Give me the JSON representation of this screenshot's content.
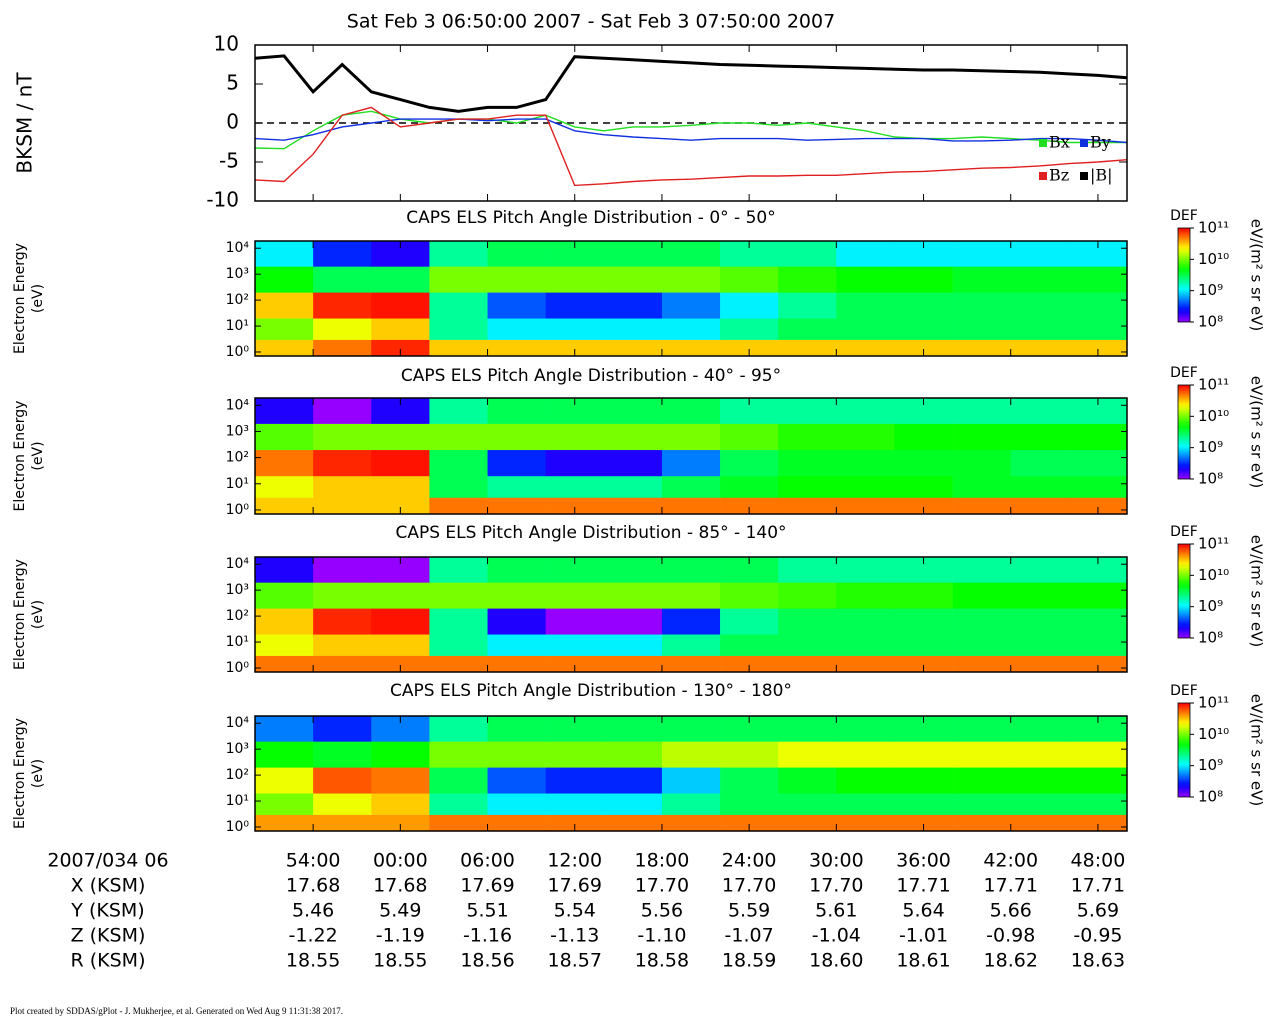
{
  "chart_data": [
    {
      "type": "line",
      "title": "Sat Feb 3 06:50:00 2007 - Sat Feb 3 07:50:00 2007",
      "ylabel": "BKSM / nT",
      "xlim": [
        50,
        110
      ],
      "ylim": [
        -10,
        10
      ],
      "yticks": [
        -10,
        -5,
        0,
        5,
        10
      ],
      "zero_line": true,
      "legend": "lower right",
      "x": [
        50,
        52,
        54,
        56,
        58,
        60,
        62,
        64,
        66,
        68,
        70,
        72,
        74,
        76,
        78,
        80,
        82,
        84,
        86,
        88,
        90,
        92,
        94,
        96,
        98,
        100,
        102,
        104,
        106,
        108,
        110
      ],
      "series": [
        {
          "name": "|B|",
          "color": "#000000",
          "values": [
            8.3,
            8.6,
            4.0,
            7.5,
            4.0,
            3.0,
            2.0,
            1.5,
            2.0,
            2.0,
            3.0,
            8.5,
            8.3,
            8.1,
            7.9,
            7.7,
            7.5,
            7.4,
            7.3,
            7.2,
            7.1,
            7.0,
            6.9,
            6.8,
            6.8,
            6.7,
            6.6,
            6.5,
            6.3,
            6.1,
            5.8
          ]
        },
        {
          "name": "Bx",
          "color": "#22dd22",
          "values": [
            -3.2,
            -3.3,
            -1.0,
            1.0,
            1.5,
            0.5,
            0.0,
            0.5,
            0.5,
            0.0,
            1.0,
            -0.5,
            -1.0,
            -0.5,
            -0.5,
            -0.3,
            0.0,
            0.0,
            -0.3,
            0.0,
            -0.5,
            -1.0,
            -1.8,
            -2.0,
            -2.0,
            -1.8,
            -2.0,
            -2.2,
            -2.5,
            -2.5,
            -2.5
          ]
        },
        {
          "name": "By",
          "color": "#1030e0",
          "values": [
            -2.0,
            -2.2,
            -1.5,
            -0.5,
            0.0,
            0.5,
            0.5,
            0.5,
            0.3,
            0.5,
            0.5,
            -1.0,
            -1.5,
            -1.8,
            -2.0,
            -2.2,
            -2.0,
            -2.0,
            -2.0,
            -2.2,
            -2.1,
            -2.0,
            -2.0,
            -2.0,
            -2.3,
            -2.3,
            -2.2,
            -2.0,
            -2.0,
            -2.2,
            -2.5
          ]
        },
        {
          "name": "Bz",
          "color": "#e02020",
          "values": [
            -7.3,
            -7.5,
            -4.0,
            1.0,
            2.0,
            -0.5,
            0.0,
            0.5,
            0.5,
            1.0,
            1.0,
            -8.0,
            -7.8,
            -7.5,
            -7.3,
            -7.2,
            -7.0,
            -6.8,
            -6.8,
            -6.7,
            -6.7,
            -6.5,
            -6.3,
            -6.2,
            -6.0,
            -5.8,
            -5.7,
            -5.5,
            -5.2,
            -5.0,
            -4.7
          ]
        }
      ]
    },
    {
      "type": "heatmap",
      "title": "CAPS ELS Pitch Angle Distribution - 0° - 50°",
      "ylabel": [
        "Electron Energy",
        "(eV)"
      ],
      "log_y": true,
      "xlim": [
        50,
        110
      ],
      "ylim": [
        0.7,
        19000
      ],
      "yticks": [
        {
          "value": 1,
          "label": "10⁰"
        },
        {
          "value": 10,
          "label": "10¹"
        },
        {
          "value": 100,
          "label": "10²"
        },
        {
          "value": 1000,
          "label": "10³"
        },
        {
          "value": 10000,
          "label": "10⁴"
        }
      ],
      "x_bins": [
        50,
        54,
        58,
        62,
        66,
        70,
        74,
        78,
        82,
        86,
        90,
        94,
        98,
        102,
        106,
        110
      ],
      "y_bins": [
        0.7,
        3,
        20,
        200,
        2000,
        19000
      ],
      "z": [
        [
          30000000000.0,
          50000000000.0,
          80000000000.0,
          30000000000.0,
          30000000000.0,
          30000000000.0,
          30000000000.0,
          30000000000.0,
          30000000000.0,
          30000000000.0,
          30000000000.0,
          30000000000.0,
          30000000000.0,
          30000000000.0,
          30000000000.0
        ],
        [
          10000000000.0,
          20000000000.0,
          30000000000.0,
          2000000000.0,
          1000000000.0,
          1000000000.0,
          1000000000.0,
          1000000000.0,
          2000000000.0,
          3000000000.0,
          3000000000.0,
          3000000000.0,
          3000000000.0,
          3000000000.0,
          3000000000.0
        ],
        [
          30000000000.0,
          80000000000.0,
          90000000000.0,
          2000000000.0,
          400000000.0,
          300000000.0,
          300000000.0,
          500000000.0,
          1000000000.0,
          2000000000.0,
          3000000000.0,
          3000000000.0,
          3000000000.0,
          3000000000.0,
          3000000000.0
        ],
        [
          5000000000.0,
          3000000000.0,
          3000000000.0,
          10000000000.0,
          10000000000.0,
          10000000000.0,
          10000000000.0,
          10000000000.0,
          8000000000.0,
          6000000000.0,
          5000000000.0,
          5000000000.0,
          4000000000.0,
          4000000000.0,
          4000000000.0
        ],
        [
          1000000000.0,
          300000000.0,
          200000000.0,
          2000000000.0,
          3000000000.0,
          3000000000.0,
          3000000000.0,
          3000000000.0,
          2000000000.0,
          2000000000.0,
          1000000000.0,
          1000000000.0,
          1000000000.0,
          1000000000.0,
          1000000000.0
        ]
      ],
      "clim": [
        100000000.0,
        100000000000.0
      ],
      "clabel": "DEF",
      "cunit": "eV/(m² s sr eV)",
      "cticks": [
        {
          "value": 100000000.0,
          "label": "10⁸"
        },
        {
          "value": 1000000000.0,
          "label": "10⁹"
        },
        {
          "value": 10000000000.0,
          "label": "10¹⁰"
        },
        {
          "value": 100000000000.0,
          "label": "10¹¹"
        }
      ]
    },
    {
      "type": "heatmap",
      "title": "CAPS ELS Pitch Angle Distribution - 40° - 95°",
      "ylabel": [
        "Electron Energy",
        "(eV)"
      ],
      "log_y": true,
      "xlim": [
        50,
        110
      ],
      "ylim": [
        0.7,
        19000
      ],
      "yticks": [
        {
          "value": 1,
          "label": "10⁰"
        },
        {
          "value": 10,
          "label": "10¹"
        },
        {
          "value": 100,
          "label": "10²"
        },
        {
          "value": 1000,
          "label": "10³"
        },
        {
          "value": 10000,
          "label": "10⁴"
        }
      ],
      "x_bins": [
        50,
        54,
        58,
        62,
        66,
        70,
        74,
        78,
        82,
        86,
        90,
        94,
        98,
        102,
        106,
        110
      ],
      "y_bins": [
        0.7,
        3,
        20,
        200,
        2000,
        19000
      ],
      "z": [
        [
          30000000000.0,
          30000000000.0,
          30000000000.0,
          50000000000.0,
          50000000000.0,
          50000000000.0,
          50000000000.0,
          50000000000.0,
          50000000000.0,
          50000000000.0,
          50000000000.0,
          50000000000.0,
          50000000000.0,
          50000000000.0,
          50000000000.0
        ],
        [
          20000000000.0,
          30000000000.0,
          30000000000.0,
          3000000000.0,
          2000000000.0,
          2000000000.0,
          2000000000.0,
          3000000000.0,
          4000000000.0,
          5000000000.0,
          5000000000.0,
          5000000000.0,
          4000000000.0,
          4000000000.0,
          4000000000.0
        ],
        [
          50000000000.0,
          80000000000.0,
          90000000000.0,
          3000000000.0,
          300000000.0,
          200000000.0,
          200000000.0,
          500000000.0,
          3000000000.0,
          4000000000.0,
          4000000000.0,
          4000000000.0,
          4000000000.0,
          3000000000.0,
          3000000000.0
        ],
        [
          8000000000.0,
          10000000000.0,
          10000000000.0,
          10000000000.0,
          10000000000.0,
          10000000000.0,
          10000000000.0,
          10000000000.0,
          8000000000.0,
          6000000000.0,
          6000000000.0,
          5000000000.0,
          5000000000.0,
          5000000000.0,
          5000000000.0
        ],
        [
          200000000.0,
          100000000.0,
          200000000.0,
          2000000000.0,
          3000000000.0,
          3000000000.0,
          3000000000.0,
          3000000000.0,
          2000000000.0,
          2000000000.0,
          2000000000.0,
          2000000000.0,
          2000000000.0,
          2000000000.0,
          2000000000.0
        ]
      ],
      "clim": [
        100000000.0,
        100000000000.0
      ],
      "clabel": "DEF",
      "cunit": "eV/(m² s sr eV)",
      "cticks": [
        {
          "value": 100000000.0,
          "label": "10⁸"
        },
        {
          "value": 1000000000.0,
          "label": "10⁹"
        },
        {
          "value": 10000000000.0,
          "label": "10¹⁰"
        },
        {
          "value": 100000000000.0,
          "label": "10¹¹"
        }
      ]
    },
    {
      "type": "heatmap",
      "title": "CAPS ELS Pitch Angle Distribution - 85° - 140°",
      "ylabel": [
        "Electron Energy",
        "(eV)"
      ],
      "log_y": true,
      "xlim": [
        50,
        110
      ],
      "ylim": [
        0.7,
        19000
      ],
      "yticks": [
        {
          "value": 1,
          "label": "10⁰"
        },
        {
          "value": 10,
          "label": "10¹"
        },
        {
          "value": 100,
          "label": "10²"
        },
        {
          "value": 1000,
          "label": "10³"
        },
        {
          "value": 10000,
          "label": "10⁴"
        }
      ],
      "x_bins": [
        50,
        54,
        58,
        62,
        66,
        70,
        74,
        78,
        82,
        86,
        90,
        94,
        98,
        102,
        106,
        110
      ],
      "y_bins": [
        0.7,
        3,
        20,
        200,
        2000,
        19000
      ],
      "z": [
        [
          50000000000.0,
          50000000000.0,
          50000000000.0,
          50000000000.0,
          50000000000.0,
          50000000000.0,
          50000000000.0,
          50000000000.0,
          50000000000.0,
          50000000000.0,
          50000000000.0,
          50000000000.0,
          50000000000.0,
          50000000000.0,
          50000000000.0
        ],
        [
          20000000000.0,
          30000000000.0,
          30000000000.0,
          2000000000.0,
          1000000000.0,
          1000000000.0,
          1000000000.0,
          2000000000.0,
          3000000000.0,
          3000000000.0,
          3000000000.0,
          3000000000.0,
          3000000000.0,
          3000000000.0,
          3000000000.0
        ],
        [
          30000000000.0,
          80000000000.0,
          90000000000.0,
          2000000000.0,
          200000000.0,
          100000000.0,
          100000000.0,
          300000000.0,
          2000000000.0,
          3000000000.0,
          3000000000.0,
          3000000000.0,
          3000000000.0,
          3000000000.0,
          3000000000.0
        ],
        [
          8000000000.0,
          10000000000.0,
          10000000000.0,
          10000000000.0,
          10000000000.0,
          10000000000.0,
          10000000000.0,
          10000000000.0,
          8000000000.0,
          7000000000.0,
          6000000000.0,
          6000000000.0,
          5000000000.0,
          5000000000.0,
          5000000000.0
        ],
        [
          200000000.0,
          100000000.0,
          100000000.0,
          2000000000.0,
          3000000000.0,
          3000000000.0,
          3000000000.0,
          3000000000.0,
          3000000000.0,
          2000000000.0,
          2000000000.0,
          2000000000.0,
          2000000000.0,
          2000000000.0,
          2000000000.0
        ]
      ],
      "clim": [
        100000000.0,
        100000000000.0
      ],
      "clabel": "DEF",
      "cunit": "eV/(m² s sr eV)",
      "cticks": [
        {
          "value": 100000000.0,
          "label": "10⁸"
        },
        {
          "value": 1000000000.0,
          "label": "10⁹"
        },
        {
          "value": 10000000000.0,
          "label": "10¹⁰"
        },
        {
          "value": 100000000000.0,
          "label": "10¹¹"
        }
      ]
    },
    {
      "type": "heatmap",
      "title": "CAPS ELS Pitch Angle Distribution - 130° - 180°",
      "ylabel": [
        "Electron Energy",
        "(eV)"
      ],
      "log_y": true,
      "xlim": [
        50,
        110
      ],
      "ylim": [
        0.7,
        19000
      ],
      "xticks": [
        {
          "value": 54,
          "label": "54:00"
        },
        {
          "value": 60,
          "label": "00:00"
        },
        {
          "value": 66,
          "label": "06:00"
        },
        {
          "value": 72,
          "label": "12:00"
        },
        {
          "value": 78,
          "label": "18:00"
        },
        {
          "value": 84,
          "label": "24:00"
        },
        {
          "value": 90,
          "label": "30:00"
        },
        {
          "value": 96,
          "label": "36:00"
        },
        {
          "value": 102,
          "label": "42:00"
        },
        {
          "value": 108,
          "label": "48:00"
        }
      ],
      "yticks": [
        {
          "value": 1,
          "label": "10⁰"
        },
        {
          "value": 10,
          "label": "10¹"
        },
        {
          "value": 100,
          "label": "10²"
        },
        {
          "value": 1000,
          "label": "10³"
        },
        {
          "value": 10000,
          "label": "10⁴"
        }
      ],
      "x_bins": [
        50,
        54,
        58,
        62,
        66,
        70,
        74,
        78,
        82,
        86,
        90,
        94,
        98,
        102,
        106,
        110
      ],
      "y_bins": [
        0.7,
        3,
        20,
        200,
        2000,
        19000
      ],
      "z": [
        [
          40000000000.0,
          40000000000.0,
          40000000000.0,
          50000000000.0,
          50000000000.0,
          50000000000.0,
          50000000000.0,
          50000000000.0,
          50000000000.0,
          50000000000.0,
          50000000000.0,
          50000000000.0,
          50000000000.0,
          50000000000.0,
          50000000000.0
        ],
        [
          10000000000.0,
          20000000000.0,
          30000000000.0,
          2000000000.0,
          1000000000.0,
          1000000000.0,
          1000000000.0,
          2000000000.0,
          3000000000.0,
          3000000000.0,
          3000000000.0,
          3000000000.0,
          3000000000.0,
          3000000000.0,
          3000000000.0
        ],
        [
          20000000000.0,
          60000000000.0,
          50000000000.0,
          3000000000.0,
          400000000.0,
          300000000.0,
          300000000.0,
          800000000.0,
          3000000000.0,
          4000000000.0,
          5000000000.0,
          5000000000.0,
          5000000000.0,
          5000000000.0,
          5000000000.0
        ],
        [
          5000000000.0,
          4000000000.0,
          5000000000.0,
          10000000000.0,
          10000000000.0,
          10000000000.0,
          10000000000.0,
          15000000000.0,
          15000000000.0,
          20000000000.0,
          20000000000.0,
          20000000000.0,
          20000000000.0,
          20000000000.0,
          20000000000.0
        ],
        [
          500000000.0,
          300000000.0,
          500000000.0,
          2000000000.0,
          3000000000.0,
          3000000000.0,
          3000000000.0,
          3000000000.0,
          3000000000.0,
          3000000000.0,
          3000000000.0,
          3000000000.0,
          3000000000.0,
          3000000000.0,
          3000000000.0
        ]
      ],
      "clim": [
        100000000.0,
        100000000000.0
      ],
      "clabel": "DEF",
      "cunit": "eV/(m² s sr eV)",
      "cticks": [
        {
          "value": 100000000.0,
          "label": "10⁸"
        },
        {
          "value": 1000000000.0,
          "label": "10⁹"
        },
        {
          "value": 10000000000.0,
          "label": "10¹⁰"
        },
        {
          "value": 100000000000.0,
          "label": "10¹¹"
        }
      ]
    }
  ],
  "ephemeris": {
    "header": "2007/034 06",
    "rows": [
      {
        "label": "X (KSM)",
        "values": [
          "17.68",
          "17.68",
          "17.69",
          "17.69",
          "17.70",
          "17.70",
          "17.70",
          "17.71",
          "17.71",
          "17.71"
        ]
      },
      {
        "label": "Y (KSM)",
        "values": [
          "5.46",
          "5.49",
          "5.51",
          "5.54",
          "5.56",
          "5.59",
          "5.61",
          "5.64",
          "5.66",
          "5.69"
        ]
      },
      {
        "label": "Z (KSM)",
        "values": [
          "-1.22",
          "-1.19",
          "-1.16",
          "-1.13",
          "-1.10",
          "-1.07",
          "-1.04",
          "-1.01",
          "-0.98",
          "-0.95"
        ]
      },
      {
        "label": "R (KSM)",
        "values": [
          "18.55",
          "18.55",
          "18.56",
          "18.57",
          "18.58",
          "18.59",
          "18.60",
          "18.61",
          "18.62",
          "18.63"
        ]
      }
    ]
  },
  "footer": "Plot created by SDDAS/gPlot - J. Mukherjee, et al.  Generated on Wed Aug 9 11:31:38 2017."
}
